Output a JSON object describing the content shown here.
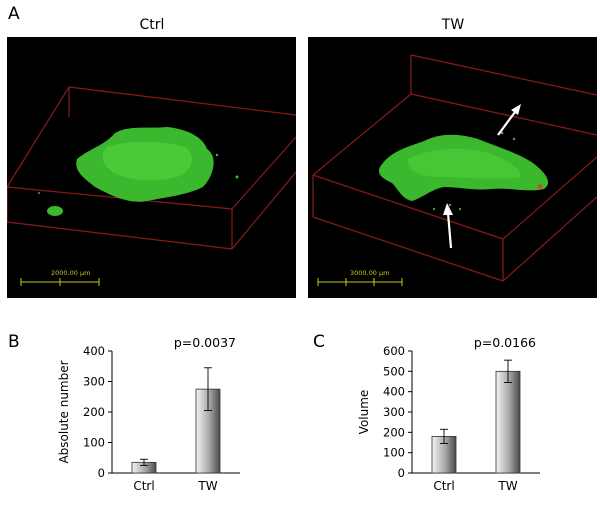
{
  "panels": {
    "a": {
      "letter": "A",
      "images": [
        {
          "title": "Ctrl",
          "scale_label": "2000.00 μm"
        },
        {
          "title": "TW",
          "scale_label": "3000.00 μm"
        }
      ]
    },
    "b": {
      "letter": "B",
      "pvalue": "p=0.0037"
    },
    "c": {
      "letter": "C",
      "pvalue": "p=0.0166"
    }
  },
  "colors": {
    "biofilm": "#3cb82e",
    "box_outline": "#8b1a1a",
    "scale_bar": "#c8c820",
    "arrow": "#ffffff"
  },
  "chart_data": [
    {
      "type": "bar",
      "categories": [
        "Ctrl",
        "TW"
      ],
      "values": [
        35,
        275
      ],
      "errors": [
        10,
        70
      ],
      "ylabel": "Absolute number",
      "ylim": [
        0,
        400
      ],
      "yticks": [
        0,
        100,
        200,
        300,
        400
      ],
      "annotation": "p=0.0037"
    },
    {
      "type": "bar",
      "categories": [
        "Ctrl",
        "TW"
      ],
      "values": [
        180,
        500
      ],
      "errors": [
        35,
        55
      ],
      "ylabel": "Volume",
      "ylim": [
        0,
        600
      ],
      "yticks": [
        0,
        100,
        200,
        300,
        400,
        500,
        600
      ],
      "annotation": "p=0.0166"
    }
  ]
}
